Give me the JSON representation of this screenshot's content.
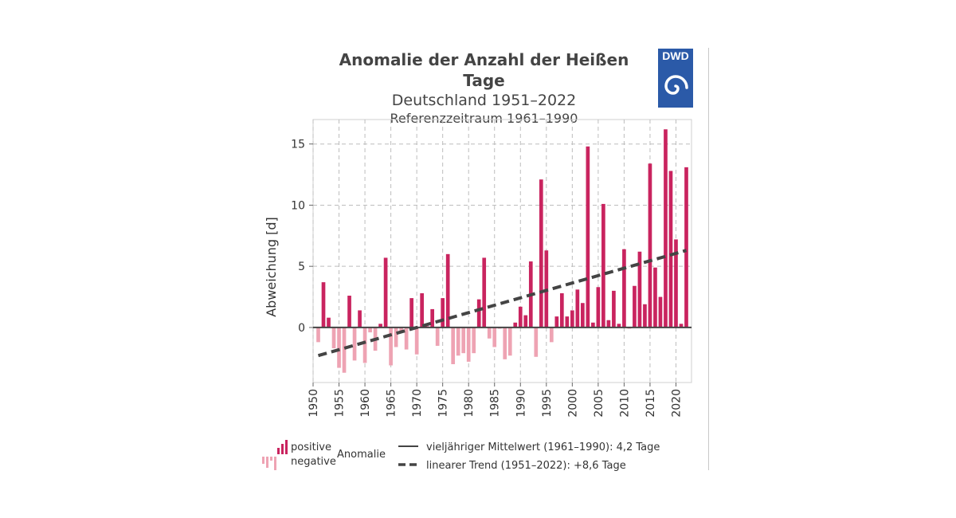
{
  "header": {
    "title": "Anomalie der Anzahl der Heißen Tage",
    "subtitle": "Deutschland 1951–2022",
    "subtitle2": "Referenzzeitraum 1961–1990",
    "logo_text": "DWD",
    "logo_color": "#2b5aa8"
  },
  "legend": {
    "positive_label": "positive",
    "negative_label": "negative",
    "anomaly_label": "Anomalie",
    "mean_label": "vieljähriger Mittelwert  (1961–1990): 4,2 Tage",
    "trend_label": "linearer Trend (1951–2022): +8,6 Tage"
  },
  "colors": {
    "positive": "#c9245f",
    "negative": "#eea3b3",
    "trend": "#444444",
    "grid": "#bdbdbd"
  },
  "chart_data": {
    "type": "bar",
    "ylabel": "Abweichung [d]",
    "xlim": [
      1950,
      2023
    ],
    "ylim": [
      -4.5,
      17
    ],
    "xticks": [
      1950,
      1955,
      1960,
      1965,
      1970,
      1975,
      1980,
      1985,
      1990,
      1995,
      2000,
      2005,
      2010,
      2015,
      2020
    ],
    "yticks": [
      0,
      5,
      10,
      15
    ],
    "grid": true,
    "years": [
      1951,
      1952,
      1953,
      1954,
      1955,
      1956,
      1957,
      1958,
      1959,
      1960,
      1961,
      1962,
      1963,
      1964,
      1965,
      1966,
      1967,
      1968,
      1969,
      1970,
      1971,
      1972,
      1973,
      1974,
      1975,
      1976,
      1977,
      1978,
      1979,
      1980,
      1981,
      1982,
      1983,
      1984,
      1985,
      1986,
      1987,
      1988,
      1989,
      1990,
      1991,
      1992,
      1993,
      1994,
      1995,
      1996,
      1997,
      1998,
      1999,
      2000,
      2001,
      2002,
      2003,
      2004,
      2005,
      2006,
      2007,
      2008,
      2009,
      2010,
      2011,
      2012,
      2013,
      2014,
      2015,
      2016,
      2017,
      2018,
      2019,
      2020,
      2021,
      2022
    ],
    "values": [
      -1.2,
      3.7,
      0.8,
      -1.7,
      -3.3,
      -3.7,
      2.6,
      -2.7,
      1.4,
      -2.9,
      -0.4,
      -1.9,
      0.3,
      5.7,
      -3.1,
      -1.6,
      -0.4,
      -1.8,
      2.4,
      -2.2,
      2.8,
      0.1,
      1.5,
      -1.5,
      2.4,
      6.0,
      -3.0,
      -2.3,
      -2.1,
      -2.8,
      -2.1,
      2.3,
      5.7,
      -0.9,
      -1.6,
      -0.1,
      -2.6,
      -2.3,
      0.4,
      1.7,
      1.0,
      5.4,
      -2.4,
      12.1,
      6.3,
      -1.2,
      0.9,
      2.8,
      0.9,
      1.4,
      3.1,
      2.0,
      14.8,
      0.4,
      3.3,
      10.1,
      0.6,
      3.0,
      0.3,
      6.4,
      -0.1,
      3.4,
      6.2,
      1.9,
      13.4,
      4.9,
      2.5,
      16.2,
      12.8,
      7.2,
      0.3,
      13.1
    ],
    "mean": 4.2,
    "trend": {
      "from": [
        1951,
        -2.3
      ],
      "to": [
        2022,
        6.3
      ]
    }
  }
}
